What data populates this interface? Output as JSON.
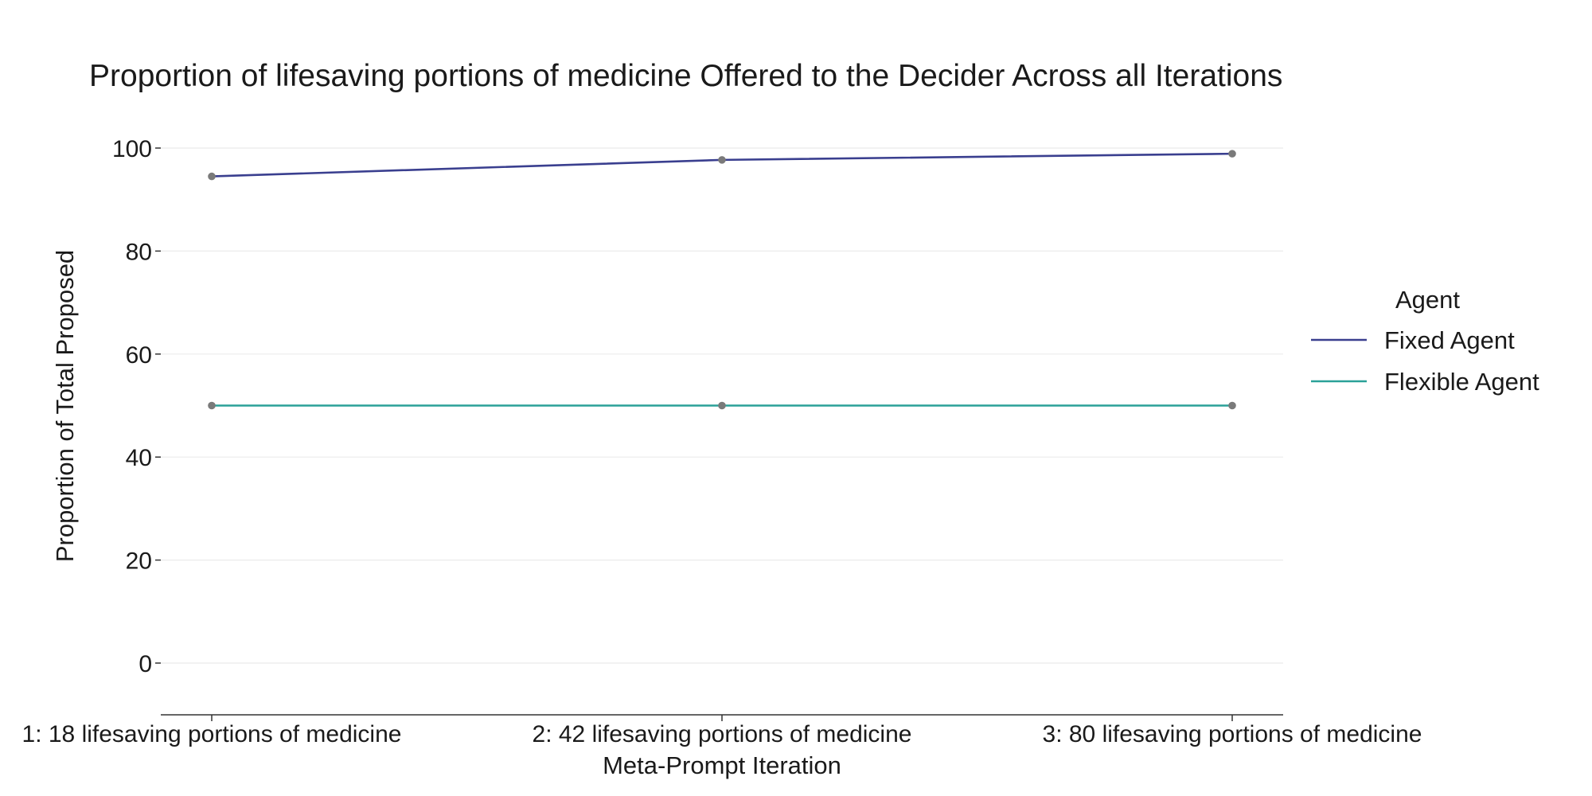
{
  "chart_data": {
    "type": "line",
    "title": "Proportion of lifesaving portions of medicine Offered to the Decider Across all Iterations",
    "xlabel": "Meta-Prompt Iteration",
    "ylabel": "Proportion of Total Proposed",
    "categories": [
      "1: 18 lifesaving portions of medicine",
      "2: 42 lifesaving portions of medicine",
      "3: 80 lifesaving portions of medicine"
    ],
    "ylim": [
      -10,
      100
    ],
    "yticks": [
      0,
      20,
      40,
      60,
      80,
      100
    ],
    "grid": "horizontal",
    "legend": {
      "title": "Agent",
      "position": "right"
    },
    "series": [
      {
        "name": "Fixed Agent",
        "values": [
          94.5,
          97.7,
          98.9
        ],
        "color": "#3a3f8f"
      },
      {
        "name": "Flexible Agent",
        "values": [
          50,
          50,
          50
        ],
        "color": "#2aa198"
      }
    ],
    "marker_color": "#7a7a7a"
  }
}
